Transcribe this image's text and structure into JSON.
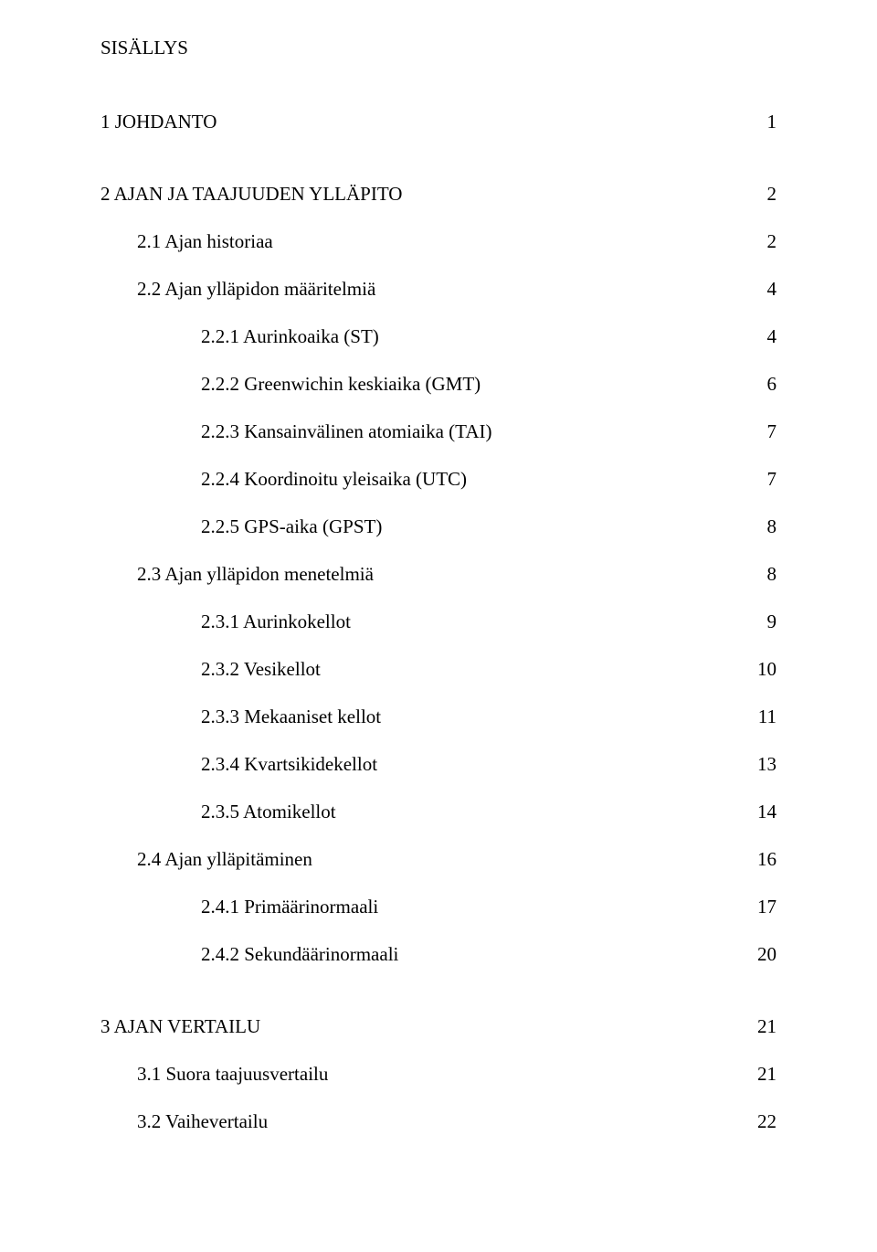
{
  "title": "SISÄLLYS",
  "entries": [
    {
      "label": "1 JOHDANTO",
      "page": "1",
      "level": 0,
      "gapBefore": false
    },
    {
      "label": "2 AJAN JA TAAJUUDEN YLLÄPITO",
      "page": "2",
      "level": 0,
      "gapBefore": true
    },
    {
      "label": "2.1 Ajan historiaa",
      "page": "2",
      "level": 1,
      "gapBefore": false
    },
    {
      "label": "2.2 Ajan ylläpidon määritelmiä",
      "page": "4",
      "level": 1,
      "gapBefore": false
    },
    {
      "label": "2.2.1 Aurinkoaika (ST)",
      "page": "4",
      "level": 2,
      "gapBefore": false
    },
    {
      "label": "2.2.2 Greenwichin keskiaika (GMT)",
      "page": "6",
      "level": 2,
      "gapBefore": false
    },
    {
      "label": "2.2.3 Kansainvälinen atomiaika (TAI)",
      "page": "7",
      "level": 2,
      "gapBefore": false
    },
    {
      "label": "2.2.4 Koordinoitu yleisaika (UTC)",
      "page": "7",
      "level": 2,
      "gapBefore": false
    },
    {
      "label": "2.2.5 GPS-aika (GPST)",
      "page": "8",
      "level": 2,
      "gapBefore": false
    },
    {
      "label": "2.3 Ajan ylläpidon menetelmiä",
      "page": "8",
      "level": 1,
      "gapBefore": false
    },
    {
      "label": "2.3.1 Aurinkokellot",
      "page": "9",
      "level": 2,
      "gapBefore": false
    },
    {
      "label": "2.3.2 Vesikellot",
      "page": "10",
      "level": 2,
      "gapBefore": false
    },
    {
      "label": "2.3.3 Mekaaniset kellot",
      "page": "11",
      "level": 2,
      "gapBefore": false
    },
    {
      "label": "2.3.4 Kvartsikidekellot",
      "page": "13",
      "level": 2,
      "gapBefore": false
    },
    {
      "label": "2.3.5 Atomikellot",
      "page": "14",
      "level": 2,
      "gapBefore": false
    },
    {
      "label": "2.4 Ajan ylläpitäminen",
      "page": "16",
      "level": 1,
      "gapBefore": false
    },
    {
      "label": "2.4.1 Primäärinormaali",
      "page": "17",
      "level": 2,
      "gapBefore": false
    },
    {
      "label": "2.4.2 Sekundäärinormaali",
      "page": "20",
      "level": 2,
      "gapBefore": false
    },
    {
      "label": "3 AJAN VERTAILU",
      "page": "21",
      "level": 0,
      "gapBefore": true
    },
    {
      "label": "3.1 Suora taajuusvertailu",
      "page": "21",
      "level": 1,
      "gapBefore": false
    },
    {
      "label": "3.2 Vaihevertailu",
      "page": "22",
      "level": 1,
      "gapBefore": false
    }
  ]
}
